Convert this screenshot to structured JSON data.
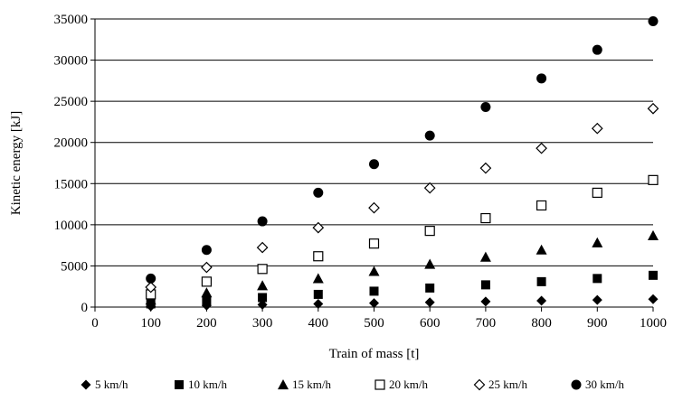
{
  "chart_data": {
    "type": "scatter",
    "xlabel": "Train of mass [t]",
    "ylabel": "Kinetic  energy [kJ]",
    "x": [
      100,
      200,
      300,
      400,
      500,
      600,
      700,
      800,
      900,
      1000
    ],
    "xlim": [
      0,
      1000
    ],
    "ylim": [
      0,
      35000
    ],
    "xticks": [
      "0",
      "100",
      "200",
      "300",
      "400",
      "500",
      "600",
      "700",
      "800",
      "900",
      "1000"
    ],
    "yticks": [
      "0",
      "5000",
      "10000",
      "15000",
      "20000",
      "25000",
      "30000",
      "35000"
    ],
    "grid": "horizontal",
    "legend_position": "bottom",
    "series": [
      {
        "name": "5 km/h",
        "marker": "filled-diamond",
        "values": [
          96,
          193,
          289,
          386,
          482,
          579,
          675,
          772,
          868,
          965
        ]
      },
      {
        "name": "10 km/h",
        "marker": "filled-square",
        "values": [
          386,
          772,
          1157,
          1543,
          1929,
          2315,
          2701,
          3086,
          3472,
          3858
        ]
      },
      {
        "name": "15 km/h",
        "marker": "filled-triangle",
        "values": [
          868,
          1736,
          2604,
          3472,
          4340,
          5208,
          6076,
          6944,
          7813,
          8681
        ]
      },
      {
        "name": "20 km/h",
        "marker": "open-square",
        "values": [
          1543,
          3086,
          4630,
          6173,
          7716,
          9259,
          10802,
          12346,
          13889,
          15432
        ]
      },
      {
        "name": "25 km/h",
        "marker": "open-diamond",
        "values": [
          2411,
          4823,
          7234,
          9645,
          12056,
          14468,
          16879,
          19290,
          21701,
          24113
        ]
      },
      {
        "name": "30 km/h",
        "marker": "filled-circle",
        "values": [
          3472,
          6944,
          10417,
          13889,
          17361,
          20833,
          24306,
          27778,
          31250,
          34722
        ]
      }
    ]
  }
}
